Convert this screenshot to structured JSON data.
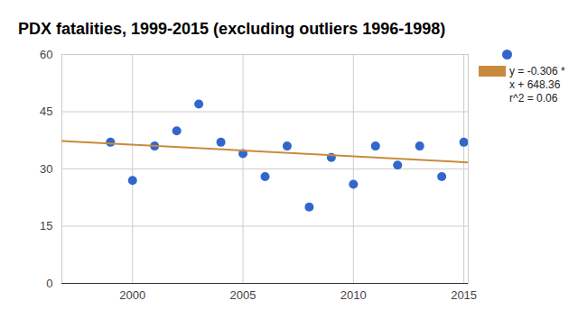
{
  "chart_data": {
    "type": "scatter",
    "title": "PDX fatalities, 1999-2015 (excluding outliers 1996-1998)",
    "x": [
      1999,
      2000,
      2001,
      2002,
      2003,
      2004,
      2005,
      2006,
      2007,
      2008,
      2009,
      2010,
      2011,
      2012,
      2013,
      2014,
      2015
    ],
    "series": [
      {
        "type": "scatter",
        "color": "#3366cc",
        "marker": "circle",
        "values": [
          37,
          27,
          36,
          40,
          47,
          37,
          34,
          28,
          36,
          20,
          33,
          26,
          36,
          31,
          36,
          28,
          37
        ]
      },
      {
        "type": "line",
        "name": "y = -0.306 * x + 648.36 r^2 = 0.06",
        "color": "#c98a3e",
        "x": [
          1996.8,
          2015.2
        ],
        "values": [
          37.34,
          31.71
        ]
      }
    ],
    "xlim": [
      1996.8,
      2015.2
    ],
    "xticks": [
      2000,
      2005,
      2010,
      2015
    ],
    "ylim": [
      0,
      60
    ],
    "yticks": [
      0,
      15,
      30,
      45,
      60
    ],
    "grid": true,
    "legend": "right"
  }
}
